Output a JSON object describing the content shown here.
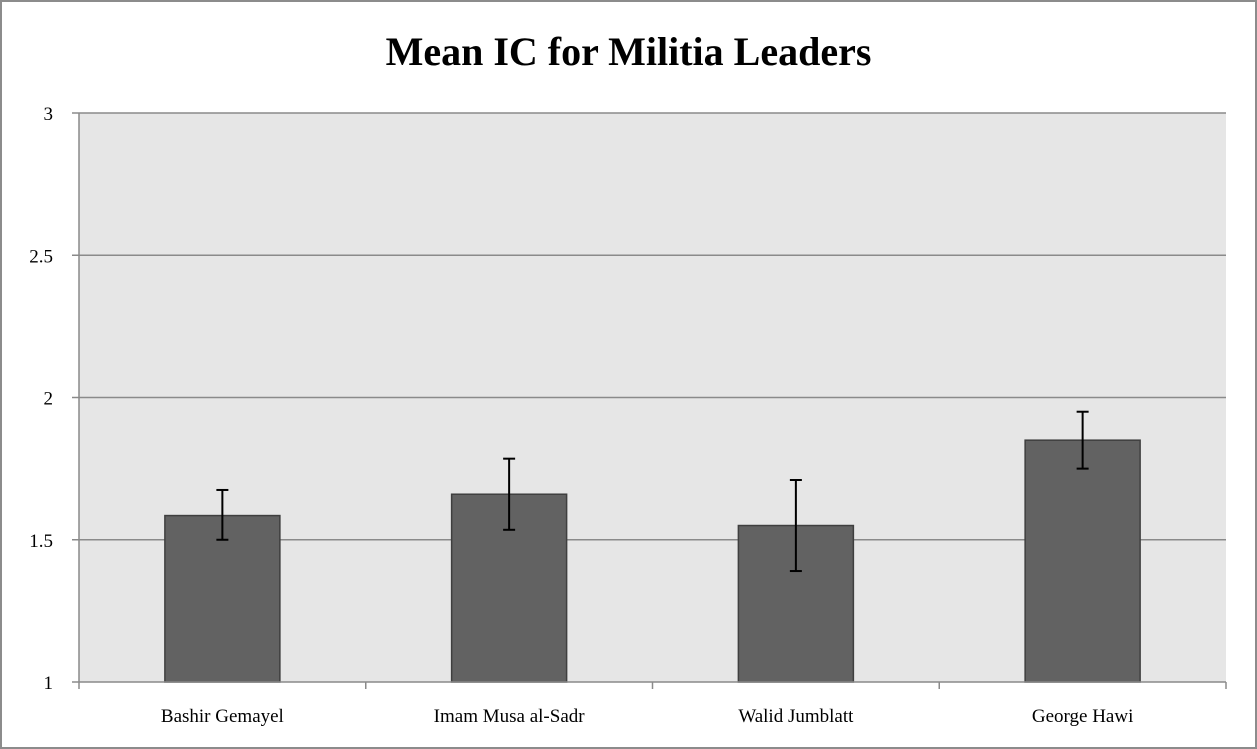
{
  "chart_data": {
    "type": "bar",
    "title": "Mean IC for Militia Leaders",
    "xlabel": "",
    "ylabel": "",
    "categories": [
      "Bashir Gemayel",
      "Imam Musa al-Sadr",
      "Walid Jumblatt",
      "George Hawi"
    ],
    "values": [
      1.585,
      1.66,
      1.55,
      1.85
    ],
    "error_bars": [
      {
        "low": 1.5,
        "high": 1.675
      },
      {
        "low": 1.535,
        "high": 1.785
      },
      {
        "low": 1.39,
        "high": 1.71
      },
      {
        "low": 1.75,
        "high": 1.95
      }
    ],
    "ylim": [
      1,
      3
    ],
    "yticks": [
      "1",
      "1.5",
      "2",
      "2.5",
      "3"
    ],
    "grid": true,
    "legend": "none",
    "colors": {
      "bar_fill": "#626262",
      "bar_stroke": "#3f3f3f",
      "plot_background": "#e6e6e6",
      "gridline": "#8a8a8a",
      "axis": "#8a8a8a",
      "error_bar": "#000000"
    }
  }
}
